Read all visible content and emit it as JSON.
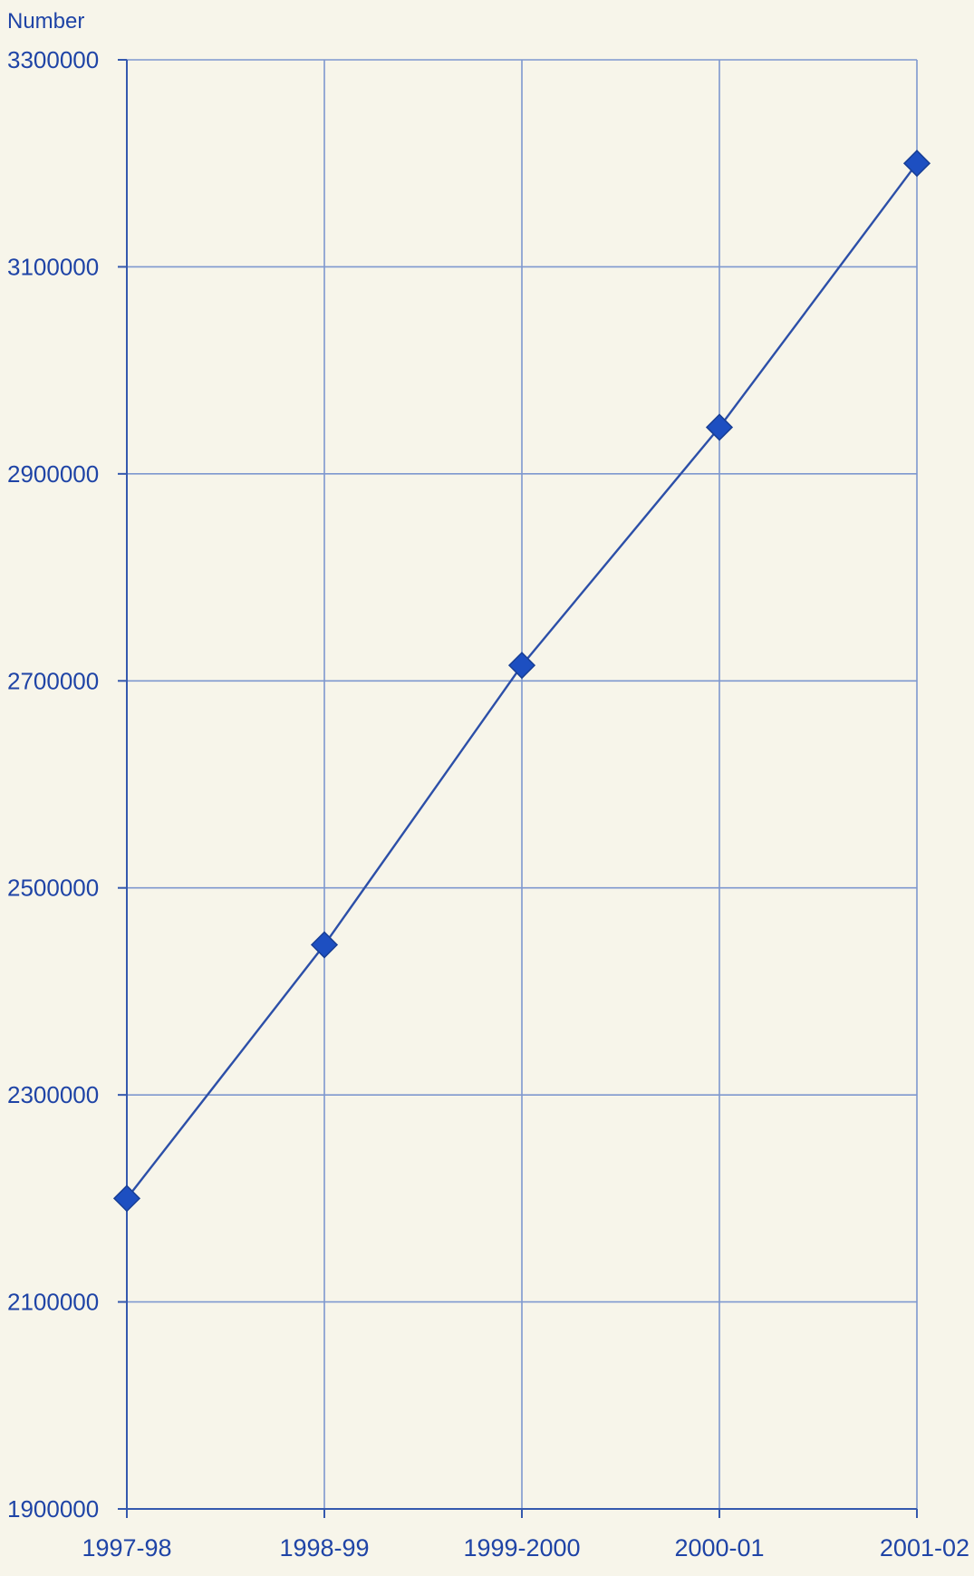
{
  "chart_data": {
    "type": "line",
    "ylabel": "Number",
    "xlabel": "",
    "categories": [
      "1997-98",
      "1998-99",
      "1999-2000",
      "2000-01",
      "2001-02"
    ],
    "series": [
      {
        "values": [
          2200000,
          2445000,
          2715000,
          2945000,
          3200000
        ]
      }
    ],
    "ylim": [
      1900000,
      3300000
    ],
    "yticks": [
      1900000,
      2100000,
      2300000,
      2500000,
      2700000,
      2900000,
      3100000,
      3300000
    ],
    "grid": true,
    "legend": "none",
    "line_color": "#2c4fa8",
    "marker_color": "#1d4fc1",
    "marker_shape": "diamond",
    "text_color": "#1f44a6",
    "grid_color": "#7e98cf"
  }
}
